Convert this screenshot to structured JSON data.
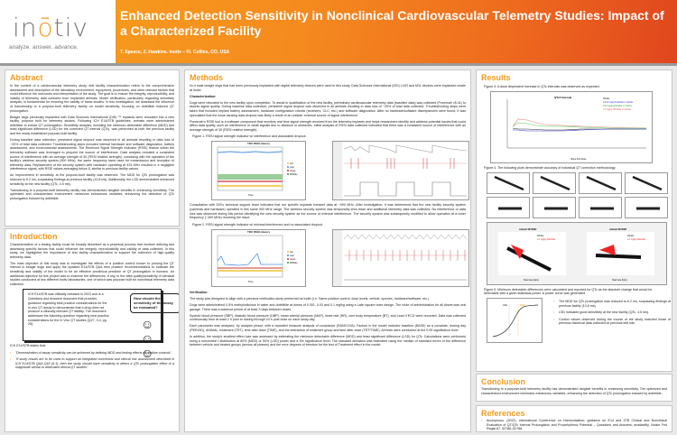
{
  "header": {
    "logo": "inotiv",
    "tagline": "analyze. answer. advance.",
    "title": "Enhanced Detection Sensitivity in Nonclinical Cardiovascular Telemetry Studies: Impact of a Characterized Facility",
    "authors": "T. Speece, Z. Hawkins.  Inotiv – Ft. Collins, CO, USA"
  },
  "abstract": {
    "heading": "Abstract",
    "paragraphs": [
      "In the context of a cardiovascular telemetry study, test facility characterization refers to the comprehensive assessment and description of the laboratory environment, equipment, procedures, and other relevant factors that could influence the outcomes and interpretation of the study. The goal is to ensure the integrity, reproducibility, and validity of telemetry data collected from implanted animals. Model verification, particularly regarding sensitivity analysis, is fundamental for ensuring the validity of these studies. In this investigation, we assessed the influence of transitioning to a purpose-built telemetry facility on model sensitivity, focusing on dofetilide induced QT prolongation.",
      "Beagle dogs previously implanted with Data Sciences International (DSI) ™ implants were relocated into a new facility, purpose built for telemetry studies. Following ICH E14/S7B guidelines, animals were administered dofetilide to induce QT prolongation. Sensitivity analysis, including the minimum detectable difference (MDD) and least significant difference (LSD) for the corrected QT interval (QTc), was performed at both the previous facility and the newly established purpose-built facility.",
      "During baseline data collection, persistent signal dropout was observed in all animals resulting in data loss of ~20% of total data collected. Troubleshooting steps included internal hardware and software diagnostics, battery assessment, and environmental assessments. The Received Signal Strength Indicator (RSSI) feature within the telemetry software was leveraged to pinpoint the source of interference. Data analysis revealed a consistent source of interference with an average strength of 30 (RSSI relative strength), coinciding with the operation of the facility's wireless security system (900 MHz), the same frequency band used for transmission and reception of telemetry data. Replacement of the security system with hardware operating at 433 MHz resulted in a negligible interference signal, with RSSI values averaging below 8, similar to previous facility values.",
      "An improvement in sensitivity at the purpose-built facility was observed. The MDD for QTc prolongation was reduced to 6.2 ms, surpassing findings at previous facility (10.8 ms). Additionally, the LSD demonstrated enhanced sensitivity at the new facility (QTc, 4.5 ms).",
      "Transitioning to a purpose-built telemetry facility has demonstrated tangible benefits in enhancing sensitivity. The optimized and characterized environment minimizes extraneous variables, enhancing the detection of QTc prolongation induced by dofetilide."
    ]
  },
  "introduction": {
    "heading": "Introduction",
    "paragraphs": [
      "Characterization of a testing facility could be broadly described as a perpetual process that involves defining and assessing specific factors that could influence the integrity, reproducibility and validity of data collected. In this study, we highlighted the importance of test facility characterization to support the collection of high-quality telemetry data.",
      "The main objective of this study was to investigate the effects of a positive control known to prolong the QT interval in beagle dogs and apply the updated E14/S7B Q&A best practice recommendations to evaluate the sensitivity and validity of the model to be an effective preclinical predictor of QT prolongation in humans. An additional objective for this project was to examine the differences, if any, in the data quality/sensitivity of identical studies conducted at two different Inotiv laboratories, one of which was purpose built for nonclinical telemetry data collection."
    ],
    "callout_text": "ICH E14/S7B was officially released in 2022 and is a Questions and Answers document that provides guidance regarding best practice considerations for the in vivo QT assay to demonstrate that a drug does not produce a clinically relevant QT liability. The document addresses the following question regarding best practice considerations for the In Vivo QT studies (Q27, 3.4, pg. 25):",
    "bubble": "How should the sensitivity of the assay be evaluated?",
    "states": "ICH E14/S7B states that:",
    "quotes": [
      "\"Demonstration of assay sensitivity can be achieved by defining MDD and testing effects of positive controls\".",
      "\"If study results are to be used to support an integrated nonclinical and clinical risk assessment described in ICH E14/S7B Q&A Q18 (6.1), then the study should have sensitivity to detect a QTc prolongation effect of a magnitude similar to dedicated clinical QT studies\"."
    ]
  },
  "methods": {
    "heading": "Methods",
    "intro": "N=4 male beagle dogs that had been previously implanted with digital telemetry devices were used in this study. Data Sciences International (DSI) L11R and M11 devices were implanted onsite at Inotiv.",
    "char_heading": "Characterization:",
    "char_paragraphs": [
      "Dogs were relocated to the new facility upon completion. To assist in qualification of the new facility, preliminary cardiovascular telemetry data (baseline data) was collected (Ponemah v5.41) to assess signal quality. During baseline data collection, persistent signal dropout was observed in all animals resulting in data loss of ~20% of total data collected. Troubleshooting steps were taken that included implant battery assessment, hardware configuration checks (receivers, CLC, etc.) and software diagnostics. After no hardware/software discrepancies were found, it was speculated that the issue causing data dropout was likely a result of an outside, external source of signal interference.",
      "Ponemah's RSSI tool is a software component that monitors real time signal strength received from the telemetry implants and helps researchers identify and address potential issues that could affect data quality, such as interference or weak signals due to distance or obstacles. Initial analysis of RSSI data collected indicated that there was a consistent source of interference with an average strength of 30 (RSSI relative strength)."
    ],
    "fig1_caption": "Figure 1. RSSI signal strength indicator w/ interference and associated dropout.",
    "rssi_title": "TRX RSSI History",
    "rssi_ylabel": "Signal Strength",
    "rssi_xlabel": "Time",
    "rssi_legend": [
      "min",
      "max",
      "mean",
      "RSSIav"
    ],
    "after_fig1": "Consultation with DSI's technical support team indicated that our specific implants transmit data at ~900 MHz. After investigation, it was determined that the new facility security system (cameras and hardware) operated in this same 900 MHz range. The wireless security system was temporarily shut down and additional telemetry data was collected. No interference or data loss was observed during this period identifying the new security system as the source of external interference. The security system was subsequently modified to allow operation at a lower frequency (~400 MHz) resolving the issue.",
    "fig2_caption": "Figure 2. RSSI signal strength indicator w/ minimal interference and no associated dropout.",
    "verif_heading": "Verification:",
    "verif_paragraphs": [
      "The study was designed to align with a previous verification study performed at Inotiv (i.e. Same positive control, dose levels, vehicle, species, hardware/software, etc.)",
      "Dogs were administered 0.5% methylcellulose in water and dofetilide at doses of 0.001, 0.03 and 0.1 mg/kg using a Latin square dose design. The route of administration for all doses was oral gavage. There was a washout period of at least 3 days between doses.",
      "Systolic blood pressure (SBP), diastolic blood pressure (DBP), mean arterial pressure (MAP), heart rate (HR), core body temperature (BT), and Lead II ECG were recorded. Data was collected continuously from at least 2 h prior to dosing through 24 h post dose on each study day.",
      "Each parameter was analyzed, by analysis phase, with a repeated measure analysis of covariance (RANCOVA). Factors in the model included baseline (BASE) as a covariate, dosing day (PERIOD), ANIMAL, treatment (TRT), time after dose (TIME), and the interaction of treatment group and time after dose (TRT*TIME). All tests were conducted at the 0.05 significance level.",
      "In addition, the study's smallest effect size was assessed by estimating the minimum detectable difference (MDD) and least significant difference (LSD) for QTc. Calculations were performed using a noncentral t distribution at 80% (MDD) or 50% (LSD) power and a 5% significance level. The standard deviation was estimated using the median of standard errors of the difference between vehicle and treated groups (across all phases) and the error degrees of freedom for the test of Treatment effect in the model."
    ]
  },
  "results": {
    "heading": "Results",
    "fig3_caption": "Figure 3. A dose dependent increase in QTc intervals was observed as expected.",
    "fig3_title": "QTcV Interval",
    "fig3_xlabel": "Hours Post Dose",
    "fig3_legend": [
      "Vehicle",
      "0.001 mg/kg Dofetilide in Vehicle",
      "0.03 mg/kg Dofetilide in Vehicle",
      "0.1 mg/kg Dofetilide in Vehicle"
    ],
    "fig4_caption": "Figure 4. The following plots demonstrate accuracy of individual QT correction methodology.",
    "fig4_big_titles": [
      "Animal 4072997",
      "Animal 4072997"
    ],
    "fig4_big_legend": [
      "Vehicle",
      "0.1 mg/kg Dofetilide"
    ],
    "fig4_xlabel": "Heart rate (bpm)",
    "fig5_caption": "Figure 5. Minimum detectable differences were calculated and reported for QTc as the absolute change that would be detectable with a given statistical power. A power curve was generated.",
    "power_labels": [
      "LSD",
      "MDD"
    ],
    "bullets": [
      "The MDD for QTc prolongation was reduced to 6.2 ms, surpassing findings at previous facility (10.8 ms).",
      "LSD indicated good sensitivity at the new facility (QTc, 4.5 ms).",
      "Control values observed during the course of the study matched those of previous historical data collected at previous test site."
    ]
  },
  "conclusion": {
    "heading": "Conclusion",
    "text": "Transitioning to a purpose-built telemetry facility has demonstrated tangible benefits in enhancing sensitivity. The optimized and characterized environment minimizes extraneous variables, enhancing the detection of QTc prolongation induced by dofetilide."
  },
  "references": {
    "heading": "References",
    "items": [
      "Anonymous. (2022). International Conference on Harmonisation; guidance on E14 and S7B Clinical and Nonclinical Evaluation of QT/QTc Interval Prolongation and Proarrhythmic Potential – Questions and Answers; availability. Notice Fed Regist 87, 52786–52788."
    ]
  },
  "colors": {
    "accent": "#f39c1f",
    "header_start": "#f7a21c",
    "header_end": "#e0461e"
  }
}
